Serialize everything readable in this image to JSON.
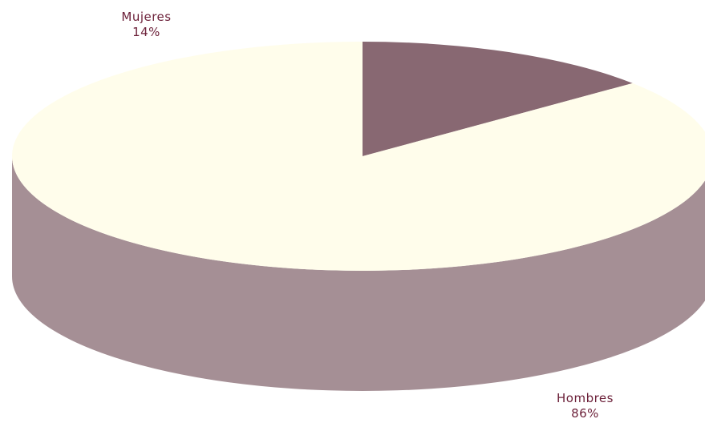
{
  "chart_data": {
    "type": "pie",
    "title": "",
    "categories": [
      "Mujeres",
      "Hombres"
    ],
    "values": [
      14,
      86
    ],
    "value_labels": [
      "14%",
      "86%"
    ],
    "colors": {
      "Mujeres": "#886872",
      "Hombres": "#fffdeb",
      "side": "#a58f95",
      "label_text": "#6b1f38"
    },
    "style": "3d"
  }
}
